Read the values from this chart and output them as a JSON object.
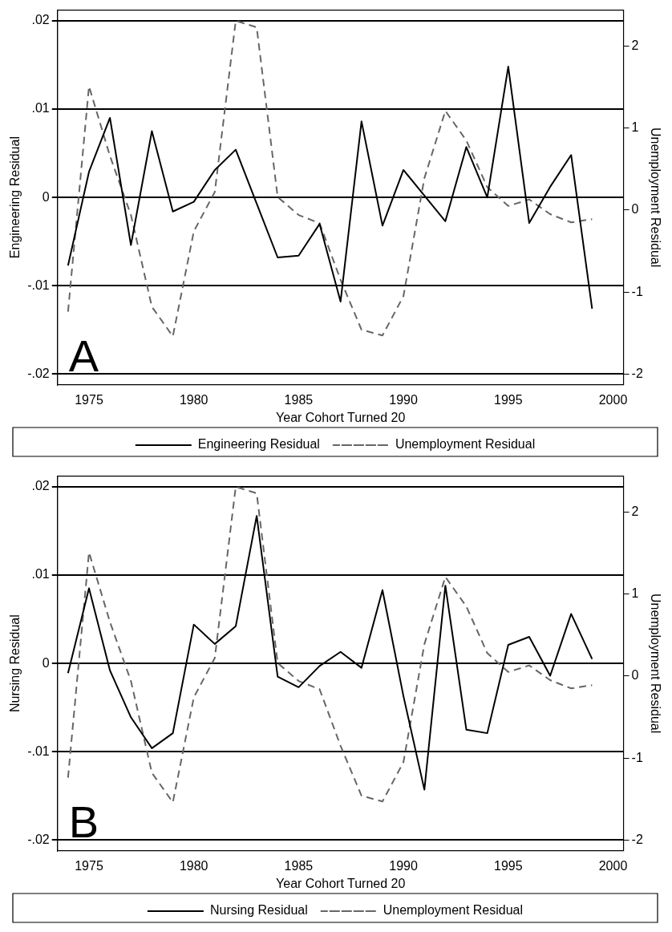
{
  "chart_data": [
    {
      "type": "line",
      "xlabel": "Year Cohort Turned 20",
      "ylabel": "Engineering Residual",
      "y2label": "Unemployment Residual",
      "annotations": [
        "A"
      ],
      "x": [
        1974,
        1975,
        1976,
        1977,
        1978,
        1979,
        1980,
        1981,
        1982,
        1983,
        1984,
        1985,
        1986,
        1987,
        1988,
        1989,
        1990,
        1991,
        1992,
        1993,
        1994,
        1995,
        1996,
        1997,
        1998,
        1999
      ],
      "xlim": [
        1973.5,
        2000.5
      ],
      "xticks": [
        1975,
        1980,
        1985,
        1990,
        1995,
        2000
      ],
      "ylim": [
        -0.0212,
        0.0212
      ],
      "yticks": [
        {
          "value": -0.02,
          "label": "-.02"
        },
        {
          "value": -0.01,
          "label": "-.01"
        },
        0,
        {
          "value": 0.01,
          "label": ".01"
        },
        {
          "value": 0.02,
          "label": ".02"
        }
      ],
      "y2lim": [
        -2.13,
        2.44
      ],
      "y2ticks": [
        -2,
        -1,
        0,
        1,
        2
      ],
      "grid": "y",
      "legend": "bottom",
      "marker": "none",
      "series": [
        {
          "name": "Engineering Residual",
          "color": "#000000",
          "line_style": "solid",
          "values": [
            -0.0077,
            0.0029,
            0.009,
            -0.0054,
            0.0075,
            -0.0016,
            -0.0005,
            0.0031,
            0.0054,
            -0.0007,
            -0.0068,
            -0.0066,
            -0.003,
            -0.0118,
            0.0086,
            -0.0032,
            0.0031,
            0.0002,
            -0.0027,
            0.0057,
            0.0,
            0.0148,
            -0.0029,
            0.0012,
            0.0048,
            -0.0126
          ]
        },
        {
          "name": "Unemployment Residual",
          "color": "#666666",
          "line_style": "dashed",
          "axis": "y2",
          "values": [
            -1.24,
            1.51,
            0.66,
            -0.06,
            -1.18,
            -1.54,
            -0.26,
            0.22,
            2.31,
            2.23,
            0.16,
            -0.06,
            -0.16,
            -0.85,
            -1.46,
            -1.53,
            -1.05,
            0.39,
            1.21,
            0.85,
            0.28,
            0.05,
            0.13,
            -0.05,
            -0.15,
            -0.11
          ]
        }
      ]
    },
    {
      "type": "line",
      "xlabel": "Year Cohort Turned 20",
      "ylabel": "Nursing Residual",
      "y2label": "Unemployment Residual",
      "annotations": [
        "B"
      ],
      "x": [
        1974,
        1975,
        1976,
        1977,
        1978,
        1979,
        1980,
        1981,
        1982,
        1983,
        1984,
        1985,
        1986,
        1987,
        1988,
        1989,
        1990,
        1991,
        1992,
        1993,
        1994,
        1995,
        1996,
        1997,
        1998,
        1999
      ],
      "xlim": [
        1973.5,
        2000.5
      ],
      "xticks": [
        1975,
        1980,
        1985,
        1990,
        1995,
        2000
      ],
      "ylim": [
        -0.0212,
        0.0212
      ],
      "yticks": [
        {
          "value": -0.02,
          "label": "-.02"
        },
        {
          "value": -0.01,
          "label": "-.01"
        },
        0,
        {
          "value": 0.01,
          "label": ".01"
        },
        {
          "value": 0.02,
          "label": ".02"
        }
      ],
      "y2lim": [
        -2.13,
        2.44
      ],
      "y2ticks": [
        -2,
        -1,
        0,
        1,
        2
      ],
      "grid": "y",
      "legend": "bottom",
      "marker": "none",
      "series": [
        {
          "name": "Nursing Residual",
          "color": "#000000",
          "line_style": "solid",
          "values": [
            -0.0011,
            0.0085,
            -0.0008,
            -0.0061,
            -0.0096,
            -0.0079,
            0.0044,
            0.0022,
            0.0042,
            0.0167,
            -0.0015,
            -0.0027,
            -0.0003,
            0.0013,
            -0.0005,
            0.0083,
            -0.0037,
            -0.0143,
            0.0088,
            -0.0075,
            -0.0079,
            0.0021,
            0.003,
            -0.0014,
            0.0056,
            0.0005
          ]
        },
        {
          "name": "Unemployment Residual",
          "color": "#666666",
          "line_style": "dashed",
          "axis": "y2",
          "values": [
            -1.24,
            1.51,
            0.66,
            -0.06,
            -1.18,
            -1.54,
            -0.26,
            0.22,
            2.31,
            2.23,
            0.16,
            -0.06,
            -0.16,
            -0.85,
            -1.46,
            -1.53,
            -1.05,
            0.39,
            1.21,
            0.85,
            0.28,
            0.05,
            0.13,
            -0.05,
            -0.15,
            -0.11
          ]
        }
      ]
    }
  ]
}
